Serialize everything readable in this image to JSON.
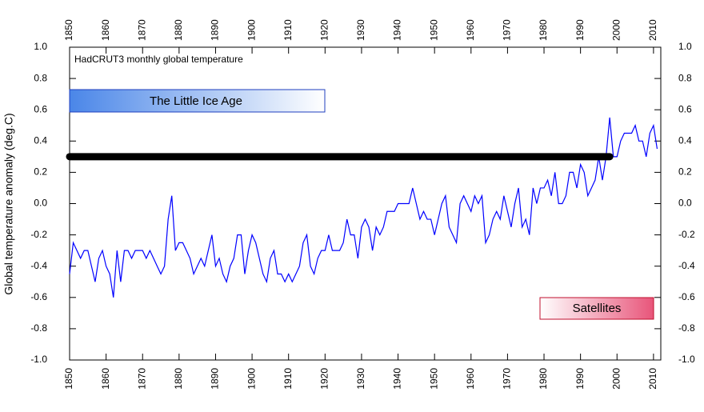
{
  "chart_data": {
    "type": "line",
    "title": "HadCRUT3 monthly global temperature",
    "y_label": "Global temperature anomaly (deg.C)",
    "annotations": [
      "The Little Ice Age",
      "Satellites"
    ],
    "x": [
      1850,
      1851,
      1852,
      1853,
      1854,
      1855,
      1856,
      1857,
      1858,
      1859,
      1860,
      1861,
      1862,
      1863,
      1864,
      1865,
      1866,
      1867,
      1868,
      1869,
      1870,
      1871,
      1872,
      1873,
      1874,
      1875,
      1876,
      1877,
      1878,
      1879,
      1880,
      1881,
      1882,
      1883,
      1884,
      1885,
      1886,
      1887,
      1888,
      1889,
      1890,
      1891,
      1892,
      1893,
      1894,
      1895,
      1896,
      1897,
      1898,
      1899,
      1900,
      1901,
      1902,
      1903,
      1904,
      1905,
      1906,
      1907,
      1908,
      1909,
      1910,
      1911,
      1912,
      1913,
      1914,
      1915,
      1916,
      1917,
      1918,
      1919,
      1920,
      1921,
      1922,
      1923,
      1924,
      1925,
      1926,
      1927,
      1928,
      1929,
      1930,
      1931,
      1932,
      1933,
      1934,
      1935,
      1936,
      1937,
      1938,
      1939,
      1940,
      1941,
      1942,
      1943,
      1944,
      1945,
      1946,
      1947,
      1948,
      1949,
      1950,
      1951,
      1952,
      1953,
      1954,
      1955,
      1956,
      1957,
      1958,
      1959,
      1960,
      1961,
      1962,
      1963,
      1964,
      1965,
      1966,
      1967,
      1968,
      1969,
      1970,
      1971,
      1972,
      1973,
      1974,
      1975,
      1976,
      1977,
      1978,
      1979,
      1980,
      1981,
      1982,
      1983,
      1984,
      1985,
      1986,
      1987,
      1988,
      1989,
      1990,
      1991,
      1992,
      1993,
      1994,
      1995,
      1996,
      1997,
      1998,
      1999,
      2000,
      2001,
      2002,
      2003,
      2004,
      2005,
      2006,
      2007,
      2008,
      2009,
      2010,
      2011
    ],
    "series": [
      {
        "name": "HadCRUT3",
        "color": "#0000ff",
        "values": [
          -0.45,
          -0.25,
          -0.3,
          -0.35,
          -0.3,
          -0.3,
          -0.4,
          -0.5,
          -0.35,
          -0.3,
          -0.4,
          -0.45,
          -0.6,
          -0.3,
          -0.5,
          -0.3,
          -0.3,
          -0.35,
          -0.3,
          -0.3,
          -0.3,
          -0.35,
          -0.3,
          -0.35,
          -0.4,
          -0.45,
          -0.4,
          -0.1,
          0.05,
          -0.3,
          -0.25,
          -0.25,
          -0.3,
          -0.35,
          -0.45,
          -0.4,
          -0.35,
          -0.4,
          -0.3,
          -0.2,
          -0.4,
          -0.35,
          -0.45,
          -0.5,
          -0.4,
          -0.35,
          -0.2,
          -0.2,
          -0.45,
          -0.3,
          -0.2,
          -0.25,
          -0.35,
          -0.45,
          -0.5,
          -0.35,
          -0.3,
          -0.45,
          -0.45,
          -0.5,
          -0.45,
          -0.5,
          -0.45,
          -0.4,
          -0.25,
          -0.2,
          -0.4,
          -0.45,
          -0.35,
          -0.3,
          -0.3,
          -0.2,
          -0.3,
          -0.3,
          -0.3,
          -0.25,
          -0.1,
          -0.2,
          -0.2,
          -0.35,
          -0.15,
          -0.1,
          -0.15,
          -0.3,
          -0.15,
          -0.2,
          -0.15,
          -0.05,
          -0.05,
          -0.05,
          0.0,
          0.0,
          0.0,
          0.0,
          0.1,
          0.0,
          -0.1,
          -0.05,
          -0.1,
          -0.1,
          -0.2,
          -0.1,
          0.0,
          0.05,
          -0.15,
          -0.2,
          -0.25,
          0.0,
          0.05,
          0.0,
          -0.05,
          0.05,
          0.0,
          0.05,
          -0.25,
          -0.2,
          -0.1,
          -0.05,
          -0.1,
          0.05,
          -0.05,
          -0.15,
          0.0,
          0.1,
          -0.15,
          -0.1,
          -0.2,
          0.1,
          0.0,
          0.1,
          0.1,
          0.15,
          0.05,
          0.2,
          0.0,
          0.0,
          0.05,
          0.2,
          0.2,
          0.1,
          0.25,
          0.2,
          0.05,
          0.1,
          0.15,
          0.3,
          0.15,
          0.3,
          0.55,
          0.3,
          0.3,
          0.4,
          0.45,
          0.45,
          0.45,
          0.5,
          0.4,
          0.4,
          0.3,
          0.45,
          0.5,
          0.35
        ]
      }
    ],
    "reference_line": {
      "x": [
        1850,
        1998
      ],
      "y": 0.3,
      "color": "#000000"
    },
    "xlim": [
      1850,
      2012
    ],
    "xticks": [
      1850,
      1860,
      1870,
      1880,
      1890,
      1900,
      1910,
      1920,
      1930,
      1940,
      1950,
      1960,
      1970,
      1980,
      1990,
      2000,
      2010
    ],
    "ylim": [
      -1,
      1
    ],
    "yticks": [
      {
        "value": -1,
        "label": "-1.0"
      },
      -0.8,
      -0.6,
      -0.4,
      -0.2,
      {
        "value": 0,
        "label": "0.0"
      },
      0.2,
      0.4,
      0.6,
      0.8,
      {
        "value": 1,
        "label": "1.0"
      }
    ]
  }
}
